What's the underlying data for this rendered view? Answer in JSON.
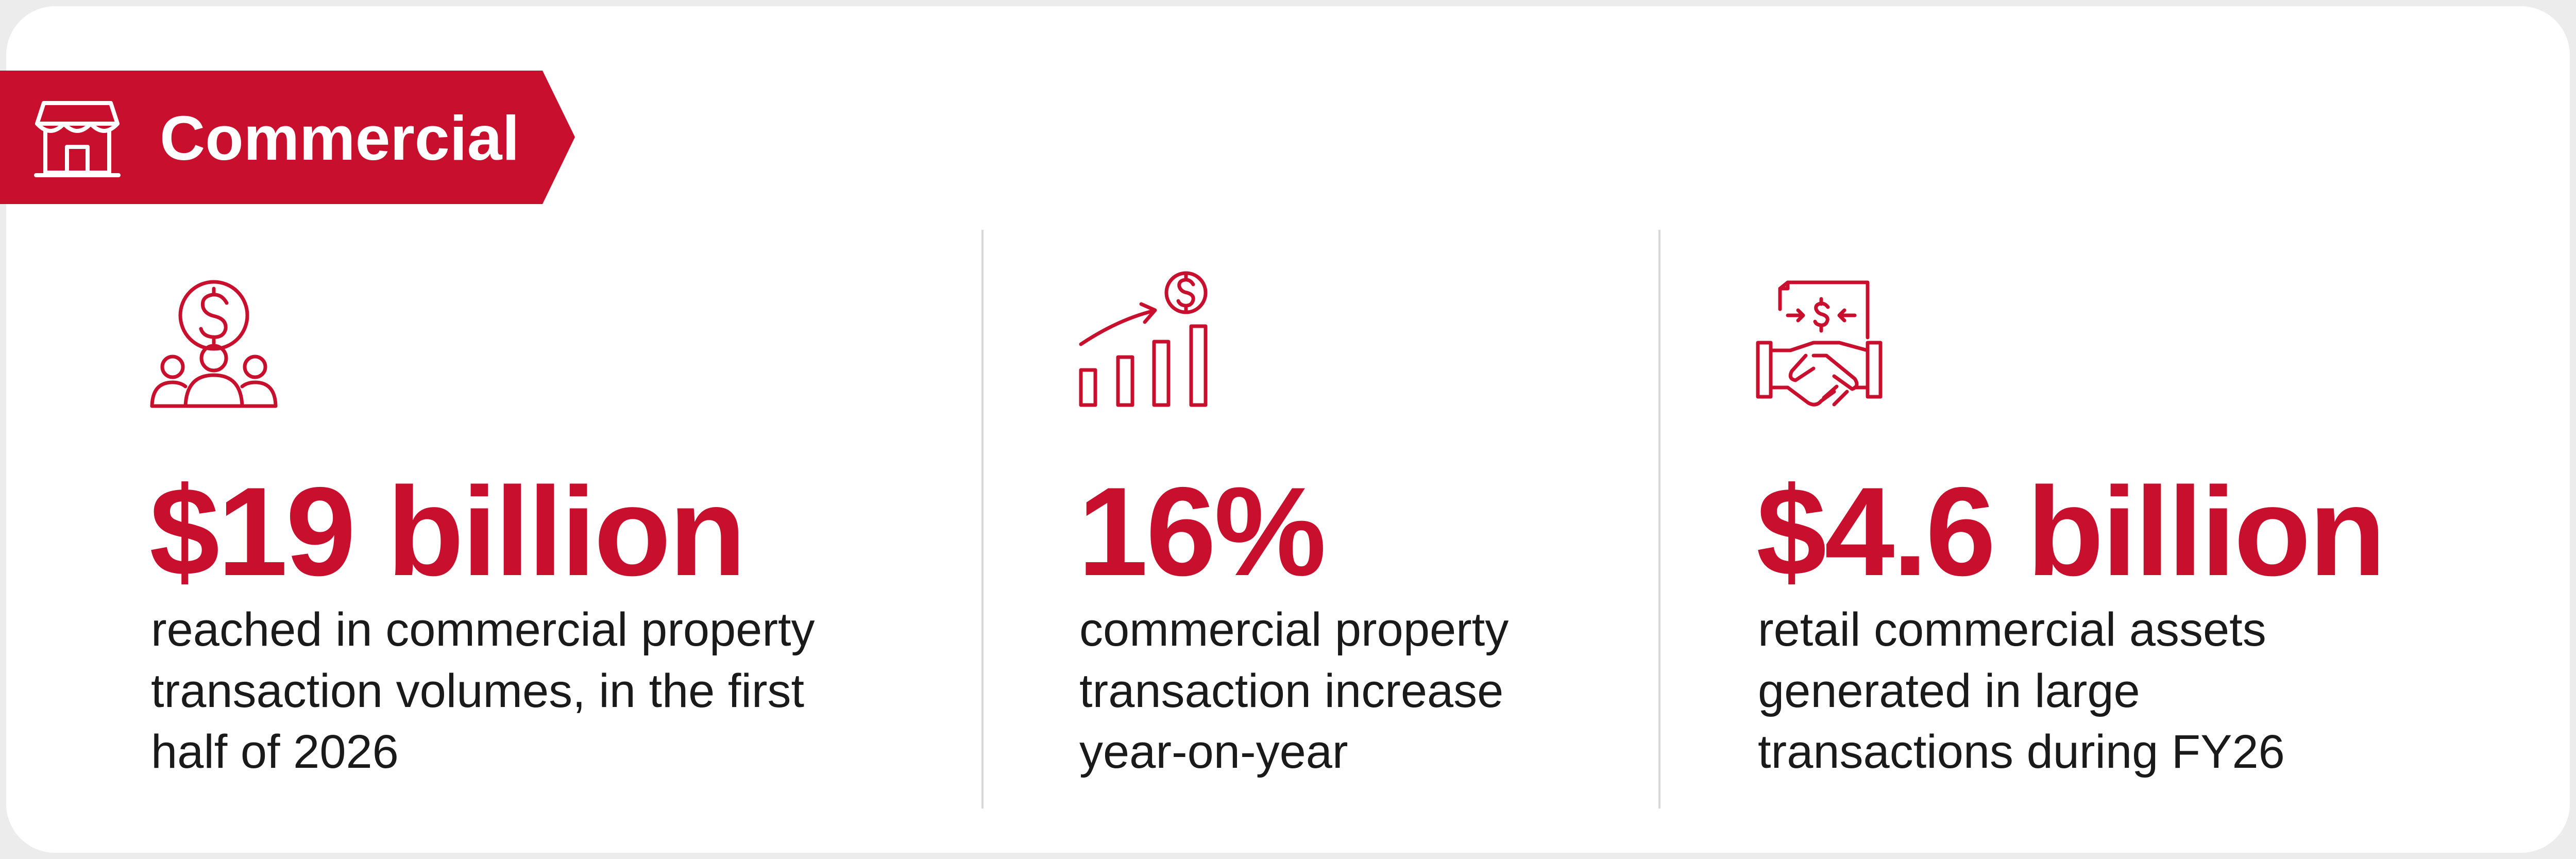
{
  "header": {
    "label": "Commercial"
  },
  "stats": [
    {
      "value": "$19 billion",
      "description": [
        "reached in commercial property",
        "transaction volumes, in the first",
        "half of 2026"
      ]
    },
    {
      "value": "16%",
      "description": [
        "commercial property",
        "transaction increase",
        "year-on-year"
      ]
    },
    {
      "value": "$4.6 billion",
      "description": [
        "retail commercial assets",
        "generated in large",
        "transactions during FY26"
      ]
    }
  ]
}
